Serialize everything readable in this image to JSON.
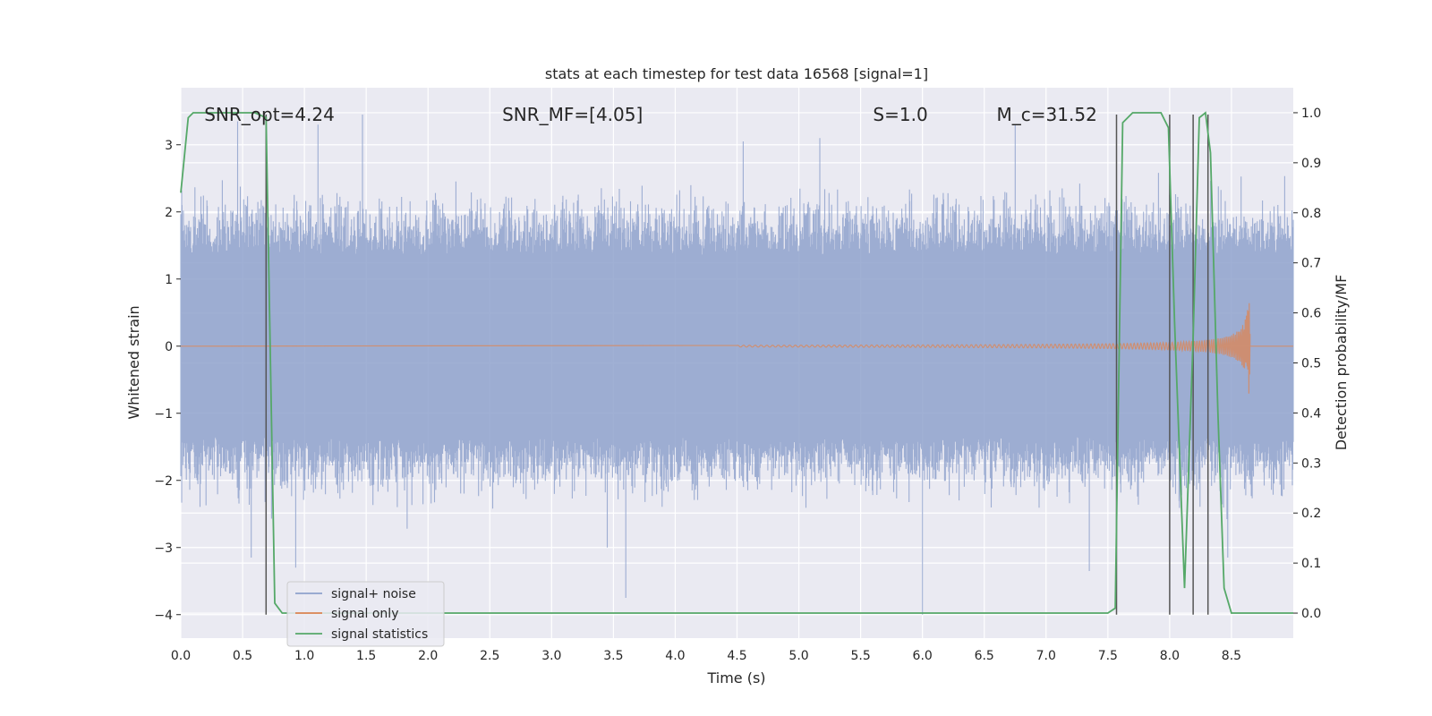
{
  "chart_data": {
    "type": "line",
    "title": "stats at each timestep for test data 16568 [signal=1]",
    "xlabel": "Time (s)",
    "ylabel": "Whitened strain",
    "y2label": "Detection probability/MF",
    "xlim": [
      0,
      9.0
    ],
    "ylim": [
      -4.35,
      3.85
    ],
    "y2lim": [
      -0.05,
      1.05
    ],
    "xticks": [
      0.0,
      0.5,
      1.0,
      1.5,
      2.0,
      2.5,
      3.0,
      3.5,
      4.0,
      4.5,
      5.0,
      5.5,
      6.0,
      6.5,
      7.0,
      7.5,
      8.0,
      8.5
    ],
    "xtick_labels": [
      "0.0",
      "0.5",
      "1.0",
      "1.5",
      "2.0",
      "2.5",
      "3.0",
      "3.5",
      "4.0",
      "4.5",
      "5.0",
      "5.5",
      "6.0",
      "6.5",
      "7.0",
      "7.5",
      "8.0",
      "8.5"
    ],
    "yticks": [
      -4,
      -3,
      -2,
      -1,
      0,
      1,
      2,
      3
    ],
    "ytick_labels": [
      "−4",
      "−3",
      "−2",
      "−1",
      "0",
      "1",
      "2",
      "3"
    ],
    "y2ticks": [
      0.0,
      0.1,
      0.2,
      0.3,
      0.4,
      0.5,
      0.6,
      0.7,
      0.8,
      0.9,
      1.0
    ],
    "y2tick_labels": [
      "0.0",
      "0.1",
      "0.2",
      "0.3",
      "0.4",
      "0.5",
      "0.6",
      "0.7",
      "0.8",
      "0.9",
      "1.0"
    ],
    "grid": true,
    "legend_position": "lower-left",
    "annotations": [
      {
        "id": "snr-opt",
        "text": "SNR_opt=4.24",
        "x": 0.19,
        "y": 3.45
      },
      {
        "id": "snr-mf",
        "text": "SNR_MF=[4.05]",
        "x": 2.6,
        "y": 3.45
      },
      {
        "id": "s-value",
        "text": "S=1.0",
        "x": 5.6,
        "y": 3.45
      },
      {
        "id": "mc-value",
        "text": "M_c=31.52",
        "x": 6.6,
        "y": 3.45
      }
    ],
    "vlines": [
      {
        "x": 0.69,
        "ymin": -4.0,
        "ymax": 3.45
      },
      {
        "x": 7.57,
        "ymin": -4.0,
        "ymax": 3.45
      },
      {
        "x": 8.0,
        "ymin": -4.0,
        "ymax": 3.45
      },
      {
        "x": 8.19,
        "ymin": -4.0,
        "ymax": 3.45
      },
      {
        "x": 8.31,
        "ymin": -4.0,
        "ymax": 3.45
      }
    ],
    "series": [
      {
        "name": "signal+ noise",
        "color": "#8fa2cc",
        "axis": "left",
        "noise_envelope": {
          "typical_amplitude": 1.5,
          "min": -4.0,
          "max": 3.45
        },
        "spikes": [
          {
            "x": 0.46,
            "y": 3.35
          },
          {
            "x": 0.57,
            "y": -3.15
          },
          {
            "x": 1.11,
            "y": 3.3
          },
          {
            "x": 1.47,
            "y": 3.45
          },
          {
            "x": 0.93,
            "y": -3.3
          },
          {
            "x": 3.6,
            "y": -3.75
          },
          {
            "x": 3.45,
            "y": -3.0
          },
          {
            "x": 5.17,
            "y": 3.1
          },
          {
            "x": 6.0,
            "y": -4.0
          },
          {
            "x": 6.75,
            "y": 3.3
          },
          {
            "x": 7.35,
            "y": -3.35
          },
          {
            "x": 8.47,
            "y": -3.15
          },
          {
            "x": 4.55,
            "y": 3.05
          }
        ]
      },
      {
        "name": "signal only",
        "color": "#dd8452",
        "axis": "left",
        "chirp": {
          "start": 4.5,
          "merger": 8.65,
          "peak_amplitude": 0.95
        }
      },
      {
        "name": "signal statistics",
        "color": "#55a868",
        "axis": "right",
        "x": [
          0.0,
          0.06,
          0.1,
          0.3,
          0.5,
          0.6,
          0.69,
          0.76,
          0.82,
          1.0,
          3.0,
          5.0,
          7.0,
          7.5,
          7.56,
          7.62,
          7.7,
          7.8,
          7.93,
          7.99,
          8.04,
          8.12,
          8.19,
          8.24,
          8.29,
          8.33,
          8.39,
          8.44,
          8.5,
          8.6,
          9.0
        ],
        "values": [
          0.84,
          0.99,
          1.0,
          1.0,
          1.0,
          1.0,
          0.99,
          0.02,
          0.0,
          0.0,
          0.0,
          0.0,
          0.0,
          0.0,
          0.01,
          0.98,
          1.0,
          1.0,
          1.0,
          0.97,
          0.58,
          0.05,
          0.55,
          0.99,
          1.0,
          0.92,
          0.4,
          0.05,
          0.0,
          0.0,
          0.0
        ]
      }
    ]
  }
}
